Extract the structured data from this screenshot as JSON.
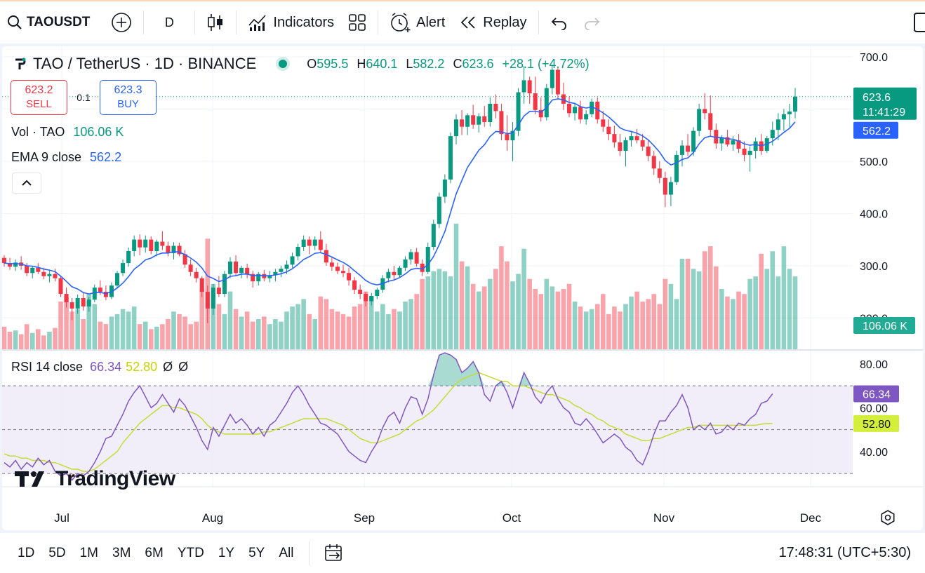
{
  "toolbar": {
    "symbol": "TAOUSDT",
    "interval": "D",
    "indicators_label": "Indicators",
    "alert_label": "Alert",
    "replay_label": "Replay",
    "icons": [
      "search-icon",
      "plus-circle-icon",
      "candles-icon",
      "indicators-icon",
      "layout-grid-icon",
      "alert-clock-icon",
      "replay-icon",
      "undo-icon",
      "redo-icon"
    ]
  },
  "legend": {
    "title": "TAO / TetherUS · 1D · BINANCE",
    "o_label": "O",
    "o": "595.5",
    "h_label": "H",
    "h": "640.1",
    "l_label": "L",
    "l": "582.2",
    "c_label": "C",
    "c": "623.6",
    "change": "+28.1 (+4.72%)"
  },
  "trade": {
    "sell_price": "623.2",
    "sell_label": "SELL",
    "spread": "0.1",
    "buy_price": "623.3",
    "buy_label": "BUY"
  },
  "volume_legend": {
    "label": "Vol · TAO",
    "value": "106.06 K"
  },
  "ema_legend": {
    "label": "EMA 9 close",
    "value": "562.2"
  },
  "rsi_legend": {
    "label": "RSI 14 close",
    "rsi": "66.34",
    "ma": "52.80",
    "n1": "Ø",
    "n2": "Ø"
  },
  "watermark": "TradingView",
  "chart_data": [
    {
      "type": "candlestick",
      "title": "TAO / TetherUS · 1D · BINANCE",
      "yticks": [
        "700.0",
        "600.0",
        "500.0",
        "400.0",
        "300.0",
        "200.0"
      ],
      "ylim": [
        140,
        720
      ],
      "xticks": [
        "Jul",
        "Aug",
        "Sep",
        "Oct",
        "Nov",
        "Dec"
      ],
      "price_label": "623.6",
      "countdown": "11:41:29",
      "ema_label": "562.2",
      "volume_label": "106.06 K",
      "ema_period": 9,
      "colors": {
        "up": "#089981",
        "down": "#f23645",
        "ema": "#2962ff"
      },
      "ohlc": [
        [
          315,
          320,
          298,
          305
        ],
        [
          305,
          315,
          292,
          298
        ],
        [
          298,
          312,
          290,
          306
        ],
        [
          306,
          318,
          292,
          300
        ],
        [
          300,
          305,
          280,
          286
        ],
        [
          286,
          300,
          276,
          296
        ],
        [
          296,
          305,
          284,
          288
        ],
        [
          288,
          296,
          274,
          280
        ],
        [
          280,
          290,
          268,
          284
        ],
        [
          284,
          294,
          270,
          276
        ],
        [
          276,
          280,
          240,
          246
        ],
        [
          246,
          258,
          220,
          230
        ],
        [
          230,
          238,
          196,
          218
        ],
        [
          218,
          245,
          208,
          238
        ],
        [
          238,
          248,
          214,
          222
        ],
        [
          222,
          240,
          212,
          235
        ],
        [
          235,
          264,
          230,
          258
        ],
        [
          258,
          272,
          244,
          250
        ],
        [
          250,
          262,
          234,
          240
        ],
        [
          240,
          268,
          236,
          262
        ],
        [
          262,
          290,
          256,
          286
        ],
        [
          286,
          312,
          280,
          305
        ],
        [
          305,
          335,
          298,
          328
        ],
        [
          328,
          358,
          318,
          350
        ],
        [
          350,
          360,
          320,
          335
        ],
        [
          335,
          358,
          325,
          350
        ],
        [
          350,
          356,
          322,
          328
        ],
        [
          328,
          350,
          318,
          346
        ],
        [
          346,
          366,
          330,
          338
        ],
        [
          338,
          346,
          318,
          324
        ],
        [
          324,
          345,
          312,
          338
        ],
        [
          338,
          344,
          318,
          322
        ],
        [
          322,
          330,
          296,
          302
        ],
        [
          302,
          312,
          280,
          288
        ],
        [
          288,
          296,
          268,
          276
        ],
        [
          276,
          280,
          240,
          250
        ],
        [
          250,
          262,
          190,
          218
        ],
        [
          218,
          265,
          206,
          258
        ],
        [
          258,
          280,
          240,
          246
        ],
        [
          246,
          290,
          240,
          284
        ],
        [
          284,
          316,
          276,
          308
        ],
        [
          308,
          320,
          280,
          286
        ],
        [
          286,
          300,
          276,
          296
        ],
        [
          296,
          304,
          276,
          284
        ],
        [
          284,
          290,
          258,
          270
        ],
        [
          270,
          288,
          262,
          284
        ],
        [
          284,
          292,
          270,
          276
        ],
        [
          276,
          290,
          268,
          282
        ],
        [
          282,
          294,
          270,
          288
        ],
        [
          288,
          300,
          278,
          294
        ],
        [
          294,
          310,
          284,
          302
        ],
        [
          302,
          325,
          296,
          318
        ],
        [
          318,
          342,
          310,
          336
        ],
        [
          336,
          358,
          328,
          350
        ],
        [
          350,
          356,
          322,
          338
        ],
        [
          338,
          356,
          330,
          350
        ],
        [
          350,
          366,
          326,
          330
        ],
        [
          330,
          342,
          300,
          306
        ],
        [
          306,
          318,
          290,
          298
        ],
        [
          298,
          306,
          284,
          290
        ],
        [
          290,
          302,
          278,
          286
        ],
        [
          286,
          296,
          262,
          272
        ],
        [
          272,
          278,
          246,
          254
        ],
        [
          254,
          264,
          236,
          246
        ],
        [
          246,
          250,
          222,
          232
        ],
        [
          232,
          248,
          224,
          242
        ],
        [
          242,
          258,
          236,
          254
        ],
        [
          254,
          282,
          248,
          276
        ],
        [
          276,
          294,
          268,
          288
        ],
        [
          288,
          300,
          272,
          282
        ],
        [
          282,
          300,
          276,
          296
        ],
        [
          296,
          318,
          290,
          312
        ],
        [
          312,
          332,
          302,
          326
        ],
        [
          326,
          334,
          298,
          304
        ],
        [
          304,
          312,
          280,
          288
        ],
        [
          288,
          344,
          284,
          336
        ],
        [
          336,
          388,
          330,
          380
        ],
        [
          380,
          440,
          372,
          432
        ],
        [
          432,
          475,
          420,
          465
        ],
        [
          465,
          555,
          458,
          548
        ],
        [
          548,
          590,
          532,
          580
        ],
        [
          580,
          598,
          550,
          566
        ],
        [
          566,
          592,
          550,
          588
        ],
        [
          588,
          608,
          562,
          570
        ],
        [
          570,
          592,
          555,
          586
        ],
        [
          586,
          606,
          566,
          575
        ],
        [
          575,
          622,
          566,
          610
        ],
        [
          610,
          628,
          582,
          596
        ],
        [
          596,
          610,
          540,
          552
        ],
        [
          552,
          588,
          520,
          540
        ],
        [
          540,
          575,
          500,
          558
        ],
        [
          558,
          640,
          548,
          632
        ],
        [
          632,
          682,
          610,
          655
        ],
        [
          655,
          662,
          610,
          630
        ],
        [
          630,
          662,
          590,
          598
        ],
        [
          598,
          622,
          576,
          584
        ],
        [
          584,
          648,
          578,
          640
        ],
        [
          640,
          685,
          628,
          675
        ],
        [
          675,
          678,
          620,
          628
        ],
        [
          628,
          650,
          598,
          610
        ],
        [
          610,
          624,
          584,
          592
        ],
        [
          592,
          610,
          578,
          604
        ],
        [
          604,
          616,
          572,
          580
        ],
        [
          580,
          598,
          570,
          590
        ],
        [
          590,
          620,
          584,
          614
        ],
        [
          614,
          622,
          572,
          580
        ],
        [
          580,
          596,
          556,
          566
        ],
        [
          566,
          580,
          540,
          552
        ],
        [
          552,
          568,
          526,
          536
        ],
        [
          536,
          552,
          510,
          520
        ],
        [
          520,
          546,
          490,
          540
        ],
        [
          540,
          556,
          528,
          548
        ],
        [
          548,
          562,
          534,
          540
        ],
        [
          540,
          552,
          520,
          528
        ],
        [
          528,
          542,
          500,
          510
        ],
        [
          510,
          520,
          474,
          486
        ],
        [
          486,
          500,
          458,
          468
        ],
        [
          468,
          480,
          412,
          436
        ],
        [
          436,
          470,
          414,
          460
        ],
        [
          460,
          520,
          454,
          512
        ],
        [
          512,
          540,
          490,
          530
        ],
        [
          530,
          552,
          510,
          518
        ],
        [
          518,
          565,
          510,
          558
        ],
        [
          558,
          610,
          548,
          600
        ],
        [
          600,
          630,
          580,
          592
        ],
        [
          592,
          626,
          548,
          560
        ],
        [
          560,
          572,
          524,
          534
        ],
        [
          534,
          550,
          520,
          546
        ],
        [
          546,
          560,
          528,
          532
        ],
        [
          532,
          548,
          520,
          540
        ],
        [
          540,
          552,
          516,
          524
        ],
        [
          524,
          538,
          500,
          512
        ],
        [
          512,
          528,
          480,
          520
        ],
        [
          520,
          545,
          505,
          538
        ],
        [
          538,
          552,
          512,
          520
        ],
        [
          520,
          548,
          516,
          544
        ],
        [
          544,
          576,
          530,
          560
        ],
        [
          560,
          592,
          540,
          580
        ],
        [
          580,
          600,
          558,
          590
        ],
        [
          590,
          610,
          565,
          595
        ],
        [
          595,
          640.1,
          582.2,
          623.6
        ]
      ],
      "volume": [
        18,
        14,
        15,
        12,
        20,
        13,
        16,
        11,
        14,
        17,
        38,
        42,
        30,
        32,
        24,
        44,
        36,
        22,
        20,
        26,
        28,
        32,
        30,
        34,
        20,
        22,
        16,
        18,
        20,
        24,
        30,
        28,
        26,
        20,
        22,
        48,
        88,
        52,
        36,
        28,
        46,
        32,
        26,
        30,
        22,
        24,
        26,
        20,
        24,
        22,
        30,
        34,
        36,
        40,
        28,
        24,
        42,
        40,
        32,
        30,
        28,
        26,
        34,
        36,
        46,
        42,
        30,
        36,
        28,
        32,
        30,
        38,
        40,
        44,
        56,
        58,
        62,
        64,
        62,
        58,
        100,
        70,
        66,
        52,
        46,
        50,
        56,
        64,
        82,
        70,
        54,
        60,
        80,
        56,
        48,
        44,
        56,
        50,
        46,
        48,
        52,
        38,
        34,
        30,
        32,
        36,
        44,
        28,
        34,
        30,
        36,
        42,
        46,
        38,
        40,
        44,
        36,
        56,
        52,
        40,
        72,
        72,
        64,
        62,
        78,
        82,
        66,
        48,
        42,
        40,
        46,
        44,
        56,
        58,
        76,
        64,
        78,
        58,
        82,
        64,
        58
      ],
      "volume_ylim": [
        0,
        230
      ],
      "rsi": [
        35,
        33,
        36,
        32,
        35,
        33,
        37,
        34,
        36,
        31,
        29,
        30,
        27,
        30,
        29,
        31,
        35,
        40,
        46,
        47,
        52,
        57,
        63,
        67,
        70,
        65,
        60,
        62,
        66,
        62,
        58,
        64,
        61,
        56,
        51,
        45,
        41,
        51,
        47,
        52,
        57,
        53,
        55,
        52,
        48,
        51,
        47,
        52,
        54,
        58,
        62,
        67,
        70,
        66,
        61,
        57,
        53,
        52,
        50,
        48,
        44,
        40,
        38,
        36,
        35,
        40,
        44,
        51,
        56,
        58,
        53,
        60,
        65,
        64,
        57,
        64,
        75,
        84,
        85,
        84,
        82,
        76,
        78,
        81,
        76,
        66,
        63,
        70,
        72,
        67,
        60,
        68,
        76,
        71,
        65,
        62,
        67,
        70,
        64,
        60,
        58,
        53,
        52,
        55,
        52,
        48,
        44,
        46,
        48,
        46,
        42,
        40,
        36,
        34,
        40,
        48,
        54,
        54,
        58,
        61,
        66,
        60,
        50,
        52,
        50,
        53,
        48,
        49,
        52,
        50,
        53,
        52,
        55,
        57,
        62,
        63,
        66.34
      ],
      "rsi_ma": [
        39,
        38,
        38,
        37,
        37,
        36,
        36,
        36,
        35,
        35,
        34,
        33,
        32,
        32,
        31,
        31,
        32,
        34,
        36,
        38,
        40,
        44,
        47,
        50,
        53,
        55,
        57,
        59,
        61,
        61,
        60,
        60,
        59,
        58,
        57,
        55,
        52,
        50,
        49,
        48,
        48,
        48,
        48,
        48,
        48,
        48,
        49,
        49,
        50,
        51,
        52,
        53,
        54,
        55,
        55,
        55,
        55,
        55,
        54,
        53,
        52,
        50,
        48,
        46,
        45,
        44,
        44,
        45,
        46,
        47,
        48,
        50,
        52,
        54,
        55,
        57,
        59,
        62,
        65,
        68,
        71,
        73,
        74,
        75,
        76,
        75,
        74,
        73,
        72,
        72,
        70,
        70,
        70,
        69,
        68,
        67,
        66,
        66,
        65,
        64,
        63,
        61,
        60,
        58,
        57,
        55,
        54,
        52,
        51,
        50,
        48,
        47,
        46,
        45,
        45,
        46,
        46,
        47,
        48,
        49,
        50,
        51,
        51,
        52,
        52,
        52,
        52,
        52,
        52,
        52,
        52,
        52,
        52,
        52,
        52.5,
        52.8,
        52.8
      ],
      "rsi_yticks": [
        "80.00",
        "60.00",
        "40.00"
      ],
      "rsi_ylim": [
        24,
        86
      ],
      "rsi_bands": [
        70,
        50,
        30
      ],
      "rsi_label": "66.34",
      "rsi_ma_label": "52.80",
      "rsi_colors": {
        "rsi": "#7e57c2",
        "ma": "#c6dc35",
        "band": "#ede7f6"
      }
    }
  ],
  "bottom": {
    "ranges": [
      "1D",
      "5D",
      "1M",
      "3M",
      "6M",
      "YTD",
      "1Y",
      "5Y",
      "All"
    ],
    "clock": "17:48:31 (UTC+5:30)"
  }
}
